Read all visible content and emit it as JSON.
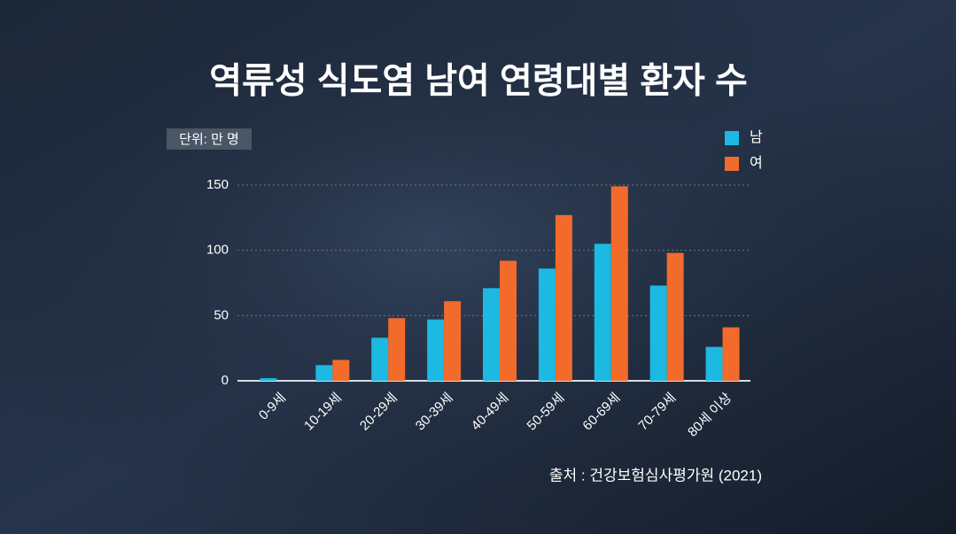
{
  "chart_data": {
    "type": "bar",
    "title": "역류성 식도염 남여 연령대별 환자 수",
    "unit_label": "단위: 만 명",
    "source": "출처 : 건강보험심사평가원 (2021)",
    "categories": [
      "0-9세",
      "10-19세",
      "20-29세",
      "30-39세",
      "40-49세",
      "50-59세",
      "60-69세",
      "70-79세",
      "80세 이상"
    ],
    "series": [
      {
        "name": "남",
        "color": "#1cb9e2",
        "values": [
          2,
          12,
          33,
          47,
          71,
          86,
          105,
          73,
          26
        ]
      },
      {
        "name": "여",
        "color": "#f26b2b",
        "values": [
          0,
          16,
          48,
          61,
          92,
          127,
          149,
          98,
          41
        ]
      }
    ],
    "ylim": [
      0,
      150
    ],
    "yticks": [
      0,
      50,
      100,
      150
    ],
    "grid": true
  }
}
